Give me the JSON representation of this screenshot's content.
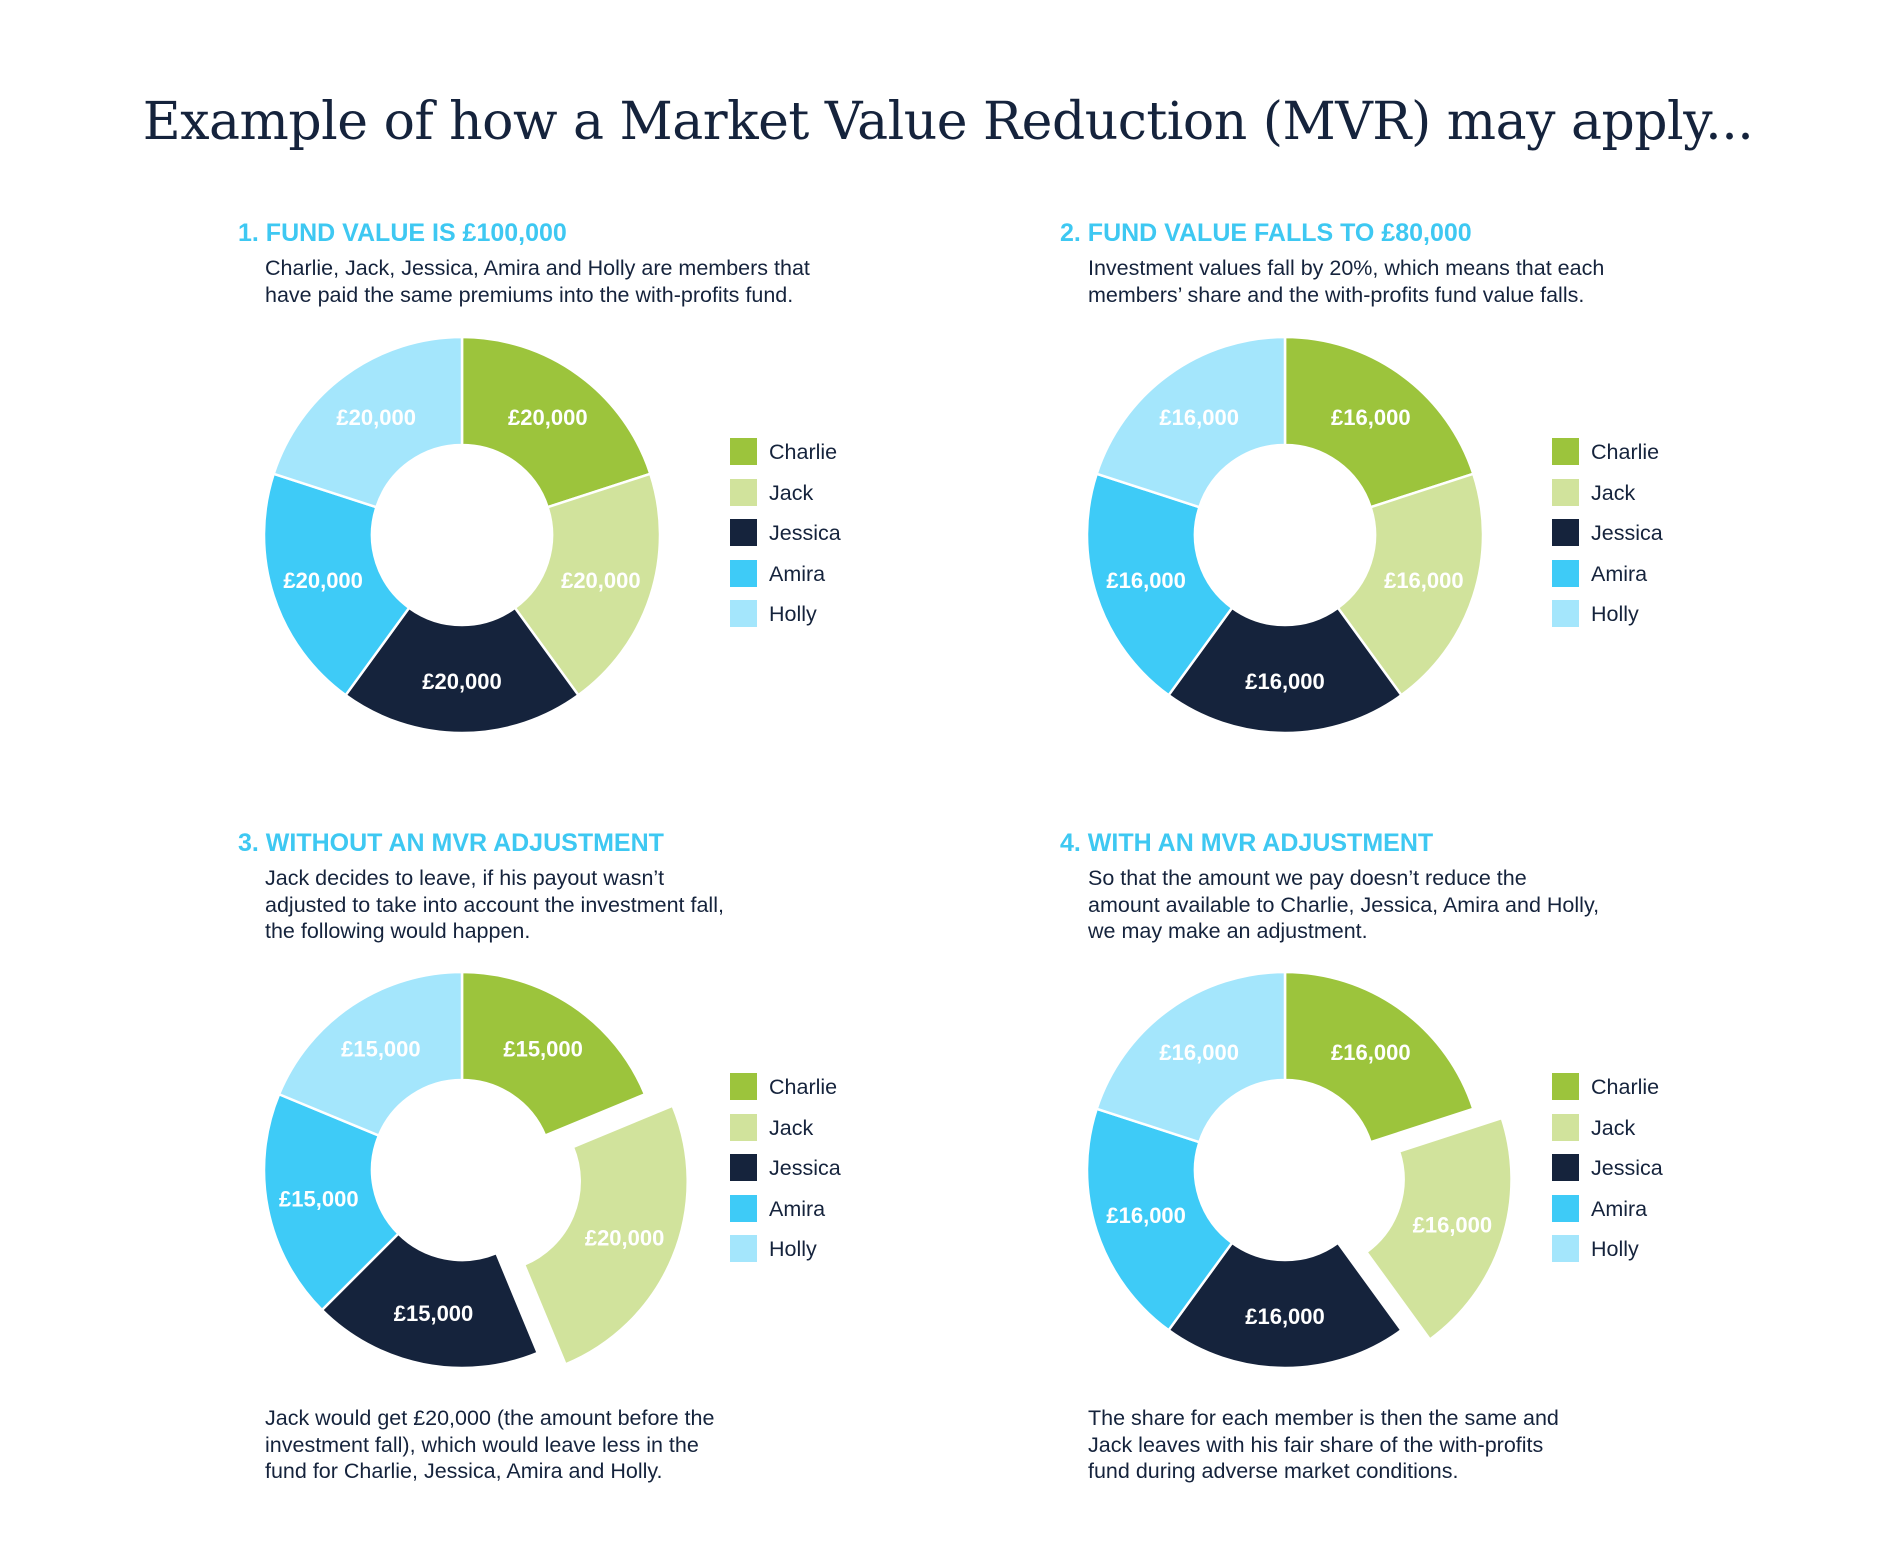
{
  "title": "Example of how a Market Value Reduction (MVR) may apply...",
  "colors": {
    "Charlie": "#9cc43c",
    "Jack": "#d1e39c",
    "Jessica": "#15233c",
    "Amira": "#3ecbf7",
    "Holly": "#a4e6fc",
    "heading": "#3ec8f2",
    "text": "#15233c"
  },
  "panels": [
    {
      "heading": "1. FUND VALUE IS £100,000",
      "description": [
        "Charlie, Jack, Jessica, Amira and Holly are members that",
        "have paid the same premiums into the with-profits fund."
      ],
      "footnote": []
    },
    {
      "heading": "2. FUND VALUE FALLS TO £80,000",
      "description": [
        "Investment values fall by 20%, which means that each",
        "members’ share and the with-profits fund value falls."
      ],
      "footnote": []
    },
    {
      "heading": "3. WITHOUT AN MVR ADJUSTMENT",
      "description": [
        "Jack decides to leave, if his payout wasn’t",
        "adjusted to take into account the investment fall,",
        "the following would happen."
      ],
      "footnote": [
        "Jack would get £20,000 (the amount before the",
        "investment fall), which would leave less in the",
        "fund for Charlie, Jessica, Amira and Holly."
      ]
    },
    {
      "heading": "4. WITH AN MVR ADJUSTMENT",
      "description": [
        "So that the amount we pay doesn’t reduce the",
        "amount available to Charlie, Jessica, Amira and Holly,",
        "we may make an adjustment."
      ],
      "footnote": [
        "The share for each member is then the same and",
        "Jack leaves with his fair share of the with-profits",
        "fund during adverse market conditions."
      ]
    }
  ],
  "chart_data": [
    {
      "type": "pie",
      "donut": true,
      "categories": [
        "Charlie",
        "Jack",
        "Jessica",
        "Amira",
        "Holly"
      ],
      "values": [
        20000,
        20000,
        20000,
        20000,
        20000
      ],
      "labels": [
        "£20,000",
        "£20,000",
        "£20,000",
        "£20,000",
        "£20,000"
      ],
      "exploded": [],
      "legend": "right"
    },
    {
      "type": "pie",
      "donut": true,
      "categories": [
        "Charlie",
        "Jack",
        "Jessica",
        "Amira",
        "Holly"
      ],
      "values": [
        16000,
        16000,
        16000,
        16000,
        16000
      ],
      "labels": [
        "£16,000",
        "£16,000",
        "£16,000",
        "£16,000",
        "£16,000"
      ],
      "exploded": [],
      "legend": "right"
    },
    {
      "type": "pie",
      "donut": true,
      "categories": [
        "Charlie",
        "Jack",
        "Jessica",
        "Amira",
        "Holly"
      ],
      "values": [
        15000,
        20000,
        15000,
        15000,
        15000
      ],
      "labels": [
        "£15,000",
        "£20,000",
        "£15,000",
        "£15,000",
        "£15,000"
      ],
      "exploded": [
        "Jack"
      ],
      "legend": "right"
    },
    {
      "type": "pie",
      "donut": true,
      "categories": [
        "Charlie",
        "Jack",
        "Jessica",
        "Amira",
        "Holly"
      ],
      "values": [
        16000,
        16000,
        16000,
        16000,
        16000
      ],
      "labels": [
        "£16,000",
        "£16,000",
        "£16,000",
        "£16,000",
        "£16,000"
      ],
      "exploded": [
        "Jack"
      ],
      "legend": "right"
    }
  ]
}
